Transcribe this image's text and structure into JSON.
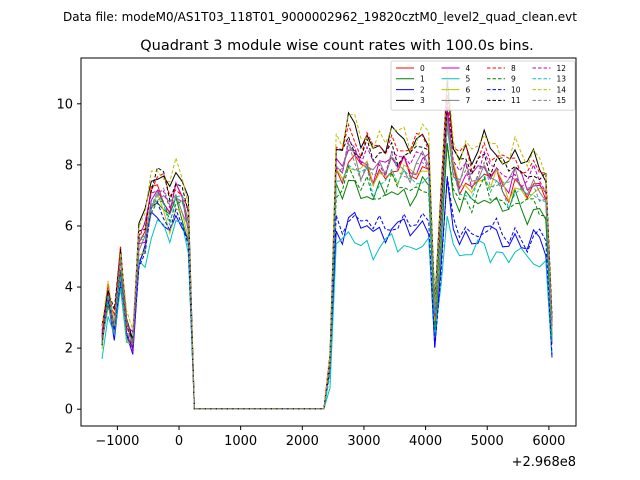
{
  "suptitle": "Data file: modeM0/AS1T03_118T01_9000002962_19820cztM0_level2_quad_clean.evt",
  "chart_data": {
    "type": "line",
    "title": "Quadrant 3 module wise count rates with 100.0s bins.",
    "xlabel": "",
    "ylabel": "",
    "x_offset_label": "+2.968e8",
    "xlim": [
      -1590,
      6440
    ],
    "ylim": [
      -0.55,
      11.5
    ],
    "x_ticks": [
      -1000,
      0,
      1000,
      2000,
      3000,
      4000,
      5000,
      6000
    ],
    "x_tick_labels": [
      "−1000",
      "0",
      "1000",
      "2000",
      "3000",
      "4000",
      "5000",
      "6000"
    ],
    "y_ticks": [
      0,
      2,
      4,
      6,
      8,
      10
    ],
    "y_tick_labels": [
      "0",
      "2",
      "4",
      "6",
      "8",
      "10"
    ],
    "grid": false,
    "legend_position": "top-right",
    "legend_columns": 4,
    "series": [
      {
        "name": "0",
        "color": "#ff0000",
        "dash": "solid",
        "a": 1.0,
        "b": 1.0,
        "p": 0
      },
      {
        "name": "1",
        "color": "#008000",
        "dash": "solid",
        "a": 0.93,
        "b": 0.91,
        "p": 3
      },
      {
        "name": "2",
        "color": "#0000ff",
        "dash": "solid",
        "a": 0.88,
        "b": 0.76,
        "p": 6
      },
      {
        "name": "3",
        "color": "#000000",
        "dash": "solid",
        "a": 1.08,
        "b": 1.13,
        "p": 1
      },
      {
        "name": "4",
        "color": "#bf00bf",
        "dash": "solid",
        "a": 0.98,
        "b": 1.03,
        "p": 8
      },
      {
        "name": "5",
        "color": "#00bfbf",
        "dash": "solid",
        "a": 0.84,
        "b": 0.69,
        "p": 2
      },
      {
        "name": "6",
        "color": "#bfbf00",
        "dash": "solid",
        "a": 0.92,
        "b": 0.99,
        "p": 5
      },
      {
        "name": "7",
        "color": "#808080",
        "dash": "solid",
        "a": 0.97,
        "b": 1.02,
        "p": 9
      },
      {
        "name": "8",
        "color": "#ff0000",
        "dash": "dashed",
        "a": 1.04,
        "b": 1.11,
        "p": 4
      },
      {
        "name": "9",
        "color": "#008000",
        "dash": "dashed",
        "a": 0.95,
        "b": 0.93,
        "p": 7
      },
      {
        "name": "10",
        "color": "#0000ff",
        "dash": "dashed",
        "a": 0.9,
        "b": 0.78,
        "p": 11
      },
      {
        "name": "11",
        "color": "#000000",
        "dash": "dashed",
        "a": 1.05,
        "b": 1.08,
        "p": 10
      },
      {
        "name": "12",
        "color": "#bf00bf",
        "dash": "dashed",
        "a": 1.0,
        "b": 1.05,
        "p": 12
      },
      {
        "name": "13",
        "color": "#00bfbf",
        "dash": "dashed",
        "a": 0.96,
        "b": 0.97,
        "p": 13
      },
      {
        "name": "14",
        "color": "#bfbf00",
        "dash": "dashed",
        "a": 1.1,
        "b": 1.15,
        "p": 14
      },
      {
        "name": "15",
        "color": "#808080",
        "dash": "dashed",
        "a": 0.98,
        "b": 1.01,
        "p": 15
      }
    ],
    "base_x": [
      -1250,
      -1150,
      -1050,
      -950,
      -850,
      -750,
      -650,
      -550,
      -450,
      -350,
      -250,
      -150,
      -50,
      50,
      150,
      250,
      350,
      450,
      550,
      650,
      750,
      850,
      950,
      1050,
      1150,
      1250,
      1350,
      1450,
      1550,
      1650,
      1750,
      1850,
      1950,
      2050,
      2150,
      2250,
      2350,
      2450,
      2550,
      2650,
      2750,
      2850,
      2950,
      3050,
      3150,
      3250,
      3350,
      3450,
      3550,
      3650,
      3750,
      3850,
      3950,
      4050,
      4150,
      4250,
      4350,
      4450,
      4550,
      4650,
      4750,
      4850,
      4950,
      5050,
      5150,
      5250,
      5350,
      5450,
      5550,
      5650,
      5750,
      5850,
      5950,
      6050
    ],
    "base_y": [
      2.3,
      3.8,
      2.8,
      4.8,
      2.7,
      2.2,
      5.5,
      5.8,
      7.0,
      7.3,
      7.1,
      6.6,
      7.2,
      6.9,
      6.2,
      0.01,
      0.01,
      0.01,
      0.01,
      0.01,
      0.01,
      0.01,
      0.01,
      0.01,
      0.01,
      0.01,
      0.01,
      0.01,
      0.01,
      0.01,
      0.01,
      0.01,
      0.01,
      0.01,
      0.01,
      0.01,
      0.01,
      1.5,
      7.8,
      7.6,
      8.3,
      8.1,
      7.7,
      8.0,
      7.5,
      7.8,
      7.6,
      8.0,
      7.7,
      7.9,
      7.6,
      7.8,
      8.0,
      7.8,
      3.0,
      6.0,
      9.5,
      7.8,
      7.3,
      7.6,
      7.2,
      7.5,
      7.8,
      7.4,
      7.6,
      7.3,
      7.1,
      7.5,
      7.2,
      7.0,
      7.3,
      7.1,
      6.9,
      2.5
    ]
  }
}
